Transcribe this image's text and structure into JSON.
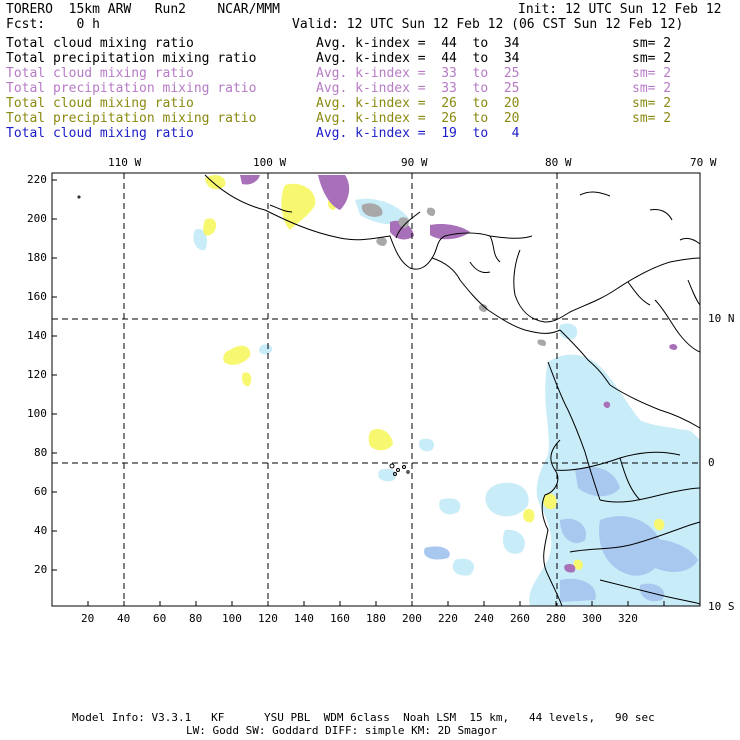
{
  "header": {
    "model_name": "TORERO  15km ARW   Run2    NCAR/MMM",
    "init": "Init: 12 UTC Sun 12 Feb 12",
    "fcst": "Fcst:    0 h",
    "valid": "Valid: 12 UTC Sun 12 Feb 12 (06 CST Sun 12 Feb 12)"
  },
  "legend": [
    {
      "field": "Total cloud mixing ratio",
      "kindex": "Avg. k-index =  44  to  34",
      "sm": "sm= 2",
      "color": "#000000"
    },
    {
      "field": "Total precipitation mixing ratio",
      "kindex": "Avg. k-index =  44  to  34",
      "sm": "sm= 2",
      "color": "#000000"
    },
    {
      "field": "Total cloud mixing ratio",
      "kindex": "Avg. k-index =  33  to  25",
      "sm": "sm= 2",
      "color": "#b77bc6"
    },
    {
      "field": "Total precipitation mixing ratio",
      "kindex": "Avg. k-index =  33  to  25",
      "sm": "sm= 2",
      "color": "#b77bc6"
    },
    {
      "field": "Total cloud mixing ratio",
      "kindex": "Avg. k-index =  26  to  20",
      "sm": "sm= 2",
      "color": "#8a8a10"
    },
    {
      "field": "Total precipitation mixing ratio",
      "kindex": "Avg. k-index =  26  to  20",
      "sm": "sm= 2",
      "color": "#8a8a10"
    },
    {
      "field": "Total cloud mixing ratio",
      "kindex": "Avg. k-index =  19  to   4",
      "sm": "",
      "color": "#1c1cc8"
    }
  ],
  "map": {
    "lon_labels": [
      "110 W",
      "100 W",
      "90 W",
      "80 W",
      "70 W"
    ],
    "lat_labels": [
      "10 N",
      "0",
      "10 S"
    ],
    "y_ticks": [
      "220",
      "200",
      "180",
      "160",
      "140",
      "120",
      "100",
      "80",
      "60",
      "40",
      "20"
    ],
    "x_ticks": [
      "20",
      "40",
      "60",
      "80",
      "100",
      "120",
      "140",
      "160",
      "180",
      "200",
      "220",
      "240",
      "260",
      "280",
      "300",
      "320"
    ],
    "colors": {
      "cloud_cyan": "#c8ecf8",
      "cloud_blue": "#a8c8f0",
      "yellow": "#f8f870",
      "purple": "#a870b8",
      "gray": "#a8a8a8"
    }
  },
  "footer": {
    "line1": "Model Info: V3.3.1   KF      YSU PBL  WDM 6class  Noah LSM  15 km,   44 levels,   90 sec",
    "line2": "LW: Godd SW: Goddard DIFF: simple KM: 2D Smagor"
  }
}
